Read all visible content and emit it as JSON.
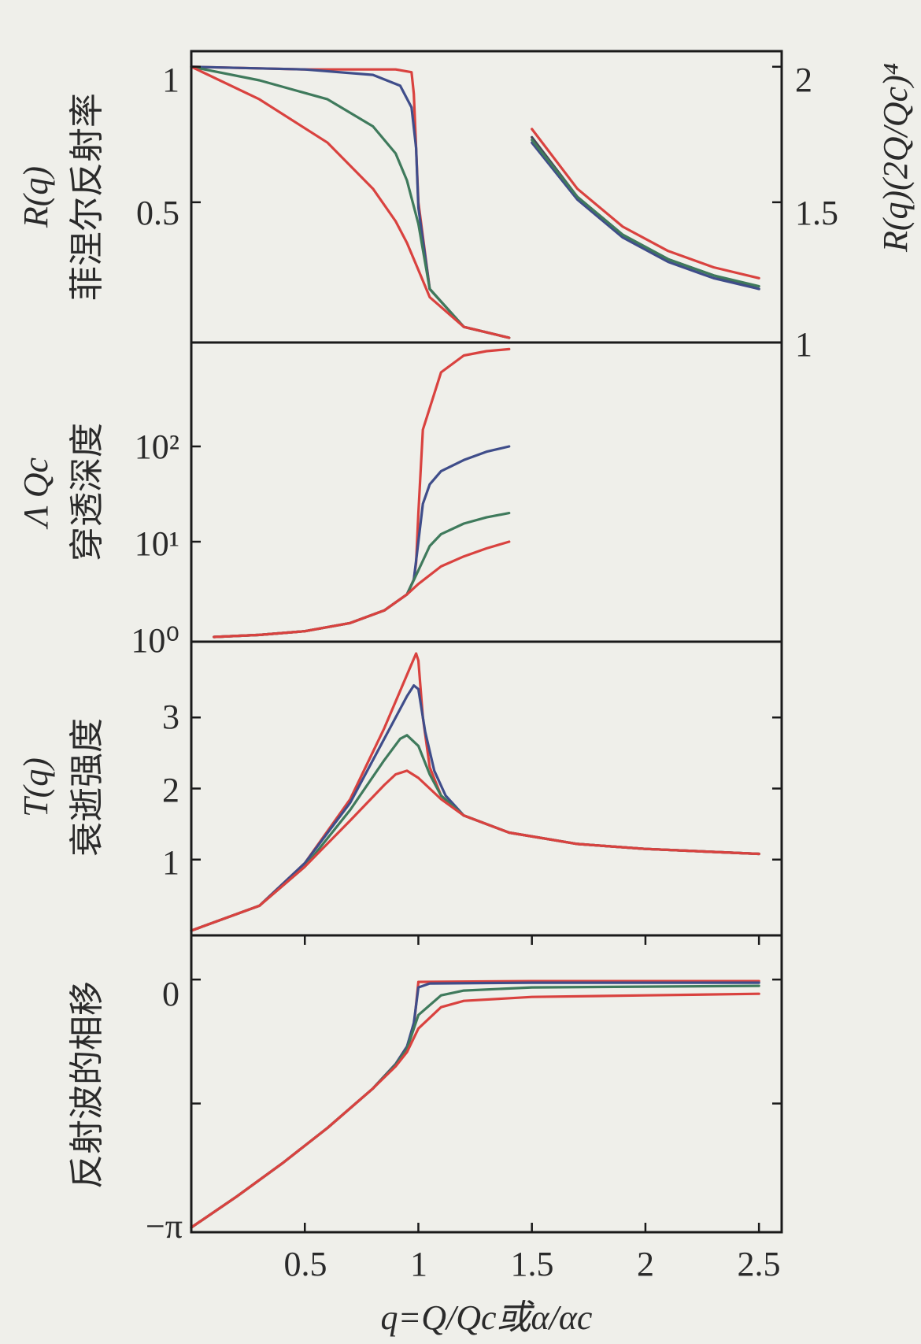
{
  "colors": {
    "red": "#d9423f",
    "blue": "#3f4d8a",
    "green": "#3f7a5c",
    "dark": "#454556",
    "axis": "#1a1a1a"
  },
  "chart_data": [
    {
      "id": "reflectivity",
      "type": "line",
      "ylabel": "R(q)",
      "ylabel_cn": "菲涅尔反射率",
      "y2label": "R(q)(2Q/Qc)⁴",
      "ylim": [
        0,
        1.04
      ],
      "y2lim": [
        1,
        2.04
      ],
      "yticks": [
        "1",
        "0.5"
      ],
      "y2ticks": [
        "2",
        "1.5",
        "1"
      ],
      "series": [
        {
          "color": "red",
          "x": [
            0,
            0.5,
            0.9,
            0.97,
            0.98,
            1.0,
            1.05,
            1.2,
            1.4
          ],
          "y": [
            1,
            0.99,
            0.99,
            0.98,
            0.9,
            0.5,
            0.18,
            0.04,
            0.0
          ]
        },
        {
          "color": "blue",
          "x": [
            0,
            0.5,
            0.8,
            0.92,
            0.97,
            0.99,
            1.0,
            1.05,
            1.2,
            1.4
          ],
          "y": [
            1,
            0.99,
            0.97,
            0.93,
            0.85,
            0.7,
            0.48,
            0.18,
            0.04,
            0.0
          ]
        },
        {
          "color": "green",
          "x": [
            0,
            0.3,
            0.6,
            0.8,
            0.9,
            0.95,
            1.0,
            1.05,
            1.2,
            1.4
          ],
          "y": [
            1,
            0.95,
            0.88,
            0.78,
            0.68,
            0.58,
            0.42,
            0.18,
            0.04,
            0.0
          ]
        },
        {
          "color": "red",
          "x": [
            0,
            0.3,
            0.6,
            0.8,
            0.9,
            0.95,
            1.0,
            1.05,
            1.2,
            1.4
          ],
          "y": [
            1,
            0.88,
            0.72,
            0.55,
            0.43,
            0.35,
            0.25,
            0.15,
            0.04,
            0.0
          ]
        },
        {
          "color": "dark",
          "axis": "y2",
          "x": [
            1.5,
            1.7,
            1.9,
            2.1,
            2.3,
            2.5
          ],
          "y": [
            1.74,
            1.52,
            1.38,
            1.29,
            1.23,
            1.18
          ]
        },
        {
          "color": "blue",
          "axis": "y2",
          "x": [
            1.5,
            1.7,
            1.9,
            2.1,
            2.3,
            2.5
          ],
          "y": [
            1.72,
            1.51,
            1.37,
            1.28,
            1.22,
            1.18
          ]
        },
        {
          "color": "green",
          "axis": "y2",
          "x": [
            1.5,
            1.7,
            1.9,
            2.1,
            2.3,
            2.5
          ],
          "y": [
            1.73,
            1.52,
            1.38,
            1.29,
            1.23,
            1.19
          ]
        },
        {
          "color": "red",
          "axis": "y2",
          "x": [
            1.5,
            1.7,
            1.9,
            2.1,
            2.3,
            2.5
          ],
          "y": [
            1.77,
            1.55,
            1.41,
            1.32,
            1.26,
            1.22
          ]
        }
      ]
    },
    {
      "id": "penetration",
      "type": "line",
      "yscale": "log",
      "ylabel": "Λ Qc",
      "ylabel_cn": "穿透深度",
      "ylim": [
        1,
        1100
      ],
      "yticks": [
        "10²",
        "10¹",
        "10⁰"
      ],
      "series": [
        {
          "color": "red",
          "x": [
            0.1,
            0.3,
            0.5,
            0.7,
            0.85,
            0.95,
            0.98,
            0.99,
            1.0,
            1.02,
            1.1,
            1.2,
            1.3,
            1.4
          ],
          "y": [
            1,
            1.05,
            1.15,
            1.4,
            1.9,
            2.8,
            4,
            6,
            20,
            150,
            600,
            900,
            1000,
            1050
          ]
        },
        {
          "color": "blue",
          "x": [
            0.1,
            0.3,
            0.5,
            0.7,
            0.85,
            0.95,
            0.98,
            1.0,
            1.02,
            1.05,
            1.1,
            1.2,
            1.3,
            1.4
          ],
          "y": [
            1,
            1.05,
            1.15,
            1.4,
            1.9,
            2.8,
            4,
            10,
            25,
            40,
            55,
            72,
            88,
            100
          ]
        },
        {
          "color": "green",
          "x": [
            0.1,
            0.3,
            0.5,
            0.7,
            0.85,
            0.95,
            1.0,
            1.05,
            1.1,
            1.2,
            1.3,
            1.4
          ],
          "y": [
            1,
            1.05,
            1.15,
            1.4,
            1.9,
            2.8,
            5,
            9,
            12,
            15.5,
            18,
            20
          ]
        },
        {
          "color": "red",
          "x": [
            0.1,
            0.3,
            0.5,
            0.7,
            0.85,
            0.95,
            1.0,
            1.1,
            1.2,
            1.3,
            1.4
          ],
          "y": [
            1,
            1.05,
            1.15,
            1.4,
            1.9,
            2.8,
            3.6,
            5.5,
            7,
            8.5,
            10
          ]
        }
      ]
    },
    {
      "id": "evanescent",
      "type": "line",
      "ylabel": "T(q)",
      "ylabel_cn": "衰逝强度",
      "ylim": [
        0,
        4
      ],
      "yticks": [
        "3",
        "2",
        "1"
      ],
      "series": [
        {
          "color": "red",
          "x": [
            0,
            0.3,
            0.5,
            0.7,
            0.85,
            0.95,
            0.99,
            1.0,
            1.02,
            1.05,
            1.1,
            1.2,
            1.4,
            1.7,
            2.0,
            2.5
          ],
          "y": [
            0,
            0.35,
            0.95,
            1.85,
            2.85,
            3.6,
            3.9,
            3.8,
            3.0,
            2.3,
            1.9,
            1.62,
            1.38,
            1.22,
            1.15,
            1.08
          ]
        },
        {
          "color": "blue",
          "x": [
            0,
            0.3,
            0.5,
            0.7,
            0.85,
            0.95,
            0.98,
            1.0,
            1.03,
            1.07,
            1.12,
            1.2,
            1.4,
            1.7,
            2.0,
            2.5
          ],
          "y": [
            0,
            0.35,
            0.95,
            1.8,
            2.7,
            3.3,
            3.45,
            3.4,
            2.8,
            2.25,
            1.9,
            1.62,
            1.38,
            1.22,
            1.15,
            1.08
          ]
        },
        {
          "color": "green",
          "x": [
            0,
            0.3,
            0.5,
            0.7,
            0.85,
            0.92,
            0.95,
            1.0,
            1.05,
            1.1,
            1.2,
            1.4,
            1.7,
            2.0,
            2.5
          ],
          "y": [
            0,
            0.35,
            0.9,
            1.7,
            2.4,
            2.7,
            2.75,
            2.6,
            2.2,
            1.9,
            1.62,
            1.38,
            1.22,
            1.15,
            1.08
          ]
        },
        {
          "color": "red",
          "x": [
            0,
            0.3,
            0.5,
            0.7,
            0.85,
            0.9,
            0.95,
            1.0,
            1.05,
            1.1,
            1.2,
            1.4,
            1.7,
            2.0,
            2.5
          ],
          "y": [
            0,
            0.35,
            0.9,
            1.55,
            2.05,
            2.2,
            2.25,
            2.15,
            2.0,
            1.85,
            1.62,
            1.38,
            1.22,
            1.15,
            1.08
          ]
        }
      ]
    },
    {
      "id": "phase",
      "type": "line",
      "ylabel": "反射波的相移",
      "ylim": [
        -3.1416,
        0.5
      ],
      "yticks": [
        "0",
        "−π"
      ],
      "xlabel": "q=Q/Qc或α/αc",
      "xlim": [
        0,
        2.6
      ],
      "xticks": [
        "0.5",
        "1",
        "1.5",
        "2",
        "2.5"
      ],
      "series": [
        {
          "color": "red",
          "x": [
            0,
            0.2,
            0.4,
            0.6,
            0.8,
            0.9,
            0.95,
            0.98,
            1.0,
            1.5,
            2.0,
            2.5
          ],
          "y": [
            -3.1416,
            -2.75,
            -2.33,
            -1.88,
            -1.38,
            -1.07,
            -0.85,
            -0.6,
            -0.03,
            -0.02,
            -0.02,
            -0.02
          ]
        },
        {
          "color": "blue",
          "x": [
            0,
            0.2,
            0.4,
            0.6,
            0.8,
            0.9,
            0.95,
            0.98,
            1.0,
            1.05,
            1.5,
            2.0,
            2.5
          ],
          "y": [
            -3.1416,
            -2.75,
            -2.33,
            -1.88,
            -1.38,
            -1.07,
            -0.85,
            -0.55,
            -0.1,
            -0.05,
            -0.04,
            -0.04,
            -0.04
          ]
        },
        {
          "color": "green",
          "x": [
            0,
            0.2,
            0.4,
            0.6,
            0.8,
            0.9,
            0.95,
            1.0,
            1.1,
            1.2,
            1.5,
            2.0,
            2.5
          ],
          "y": [
            -3.1416,
            -2.75,
            -2.33,
            -1.88,
            -1.38,
            -1.08,
            -0.88,
            -0.45,
            -0.2,
            -0.14,
            -0.1,
            -0.09,
            -0.08
          ]
        },
        {
          "color": "red",
          "x": [
            0,
            0.2,
            0.4,
            0.6,
            0.8,
            0.9,
            0.95,
            1.0,
            1.1,
            1.2,
            1.5,
            2.0,
            2.5
          ],
          "y": [
            -3.1416,
            -2.75,
            -2.33,
            -1.88,
            -1.38,
            -1.1,
            -0.92,
            -0.62,
            -0.35,
            -0.27,
            -0.22,
            -0.2,
            -0.18
          ]
        }
      ]
    }
  ]
}
